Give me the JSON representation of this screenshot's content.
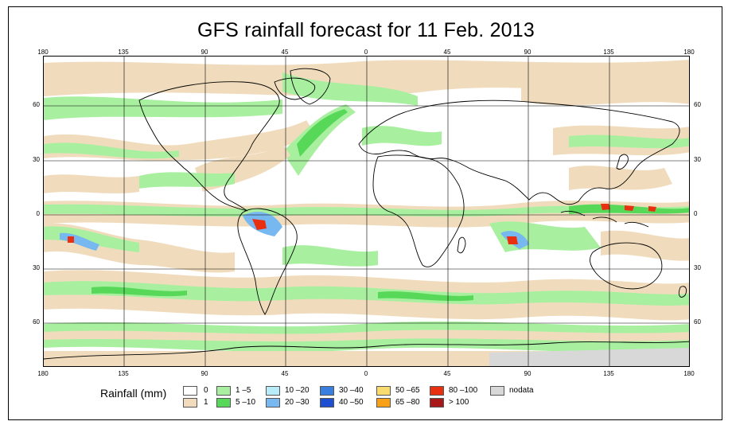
{
  "title": "GFS rainfall forecast for 11 Feb. 2013",
  "x_ticks": [
    "180",
    "135",
    "90",
    "45",
    "0",
    "45",
    "90",
    "135",
    "180"
  ],
  "y_ticks": [
    "60",
    "30",
    "0",
    "30",
    "60"
  ],
  "legend": {
    "title": "Rainfall (mm)",
    "items": [
      {
        "label": "0",
        "color": "#ffffff"
      },
      {
        "label": "1",
        "color": "#f0dcbc"
      },
      {
        "label": "1 –5",
        "color": "#a8f0a0"
      },
      {
        "label": "5 –10",
        "color": "#58d858"
      },
      {
        "label": "10 –20",
        "color": "#b8ecf8"
      },
      {
        "label": "20 –30",
        "color": "#78b8f0"
      },
      {
        "label": "30 –40",
        "color": "#3a7ee0"
      },
      {
        "label": "40 –50",
        "color": "#1e4fd0"
      },
      {
        "label": "50 –65",
        "color": "#f8dc70"
      },
      {
        "label": "65 –80",
        "color": "#f8a018"
      },
      {
        "label": "80 –100",
        "color": "#e83010"
      },
      {
        "label": "> 100",
        "color": "#a81818"
      },
      {
        "label": "nodata",
        "color": "#d8d8d8"
      }
    ]
  }
}
